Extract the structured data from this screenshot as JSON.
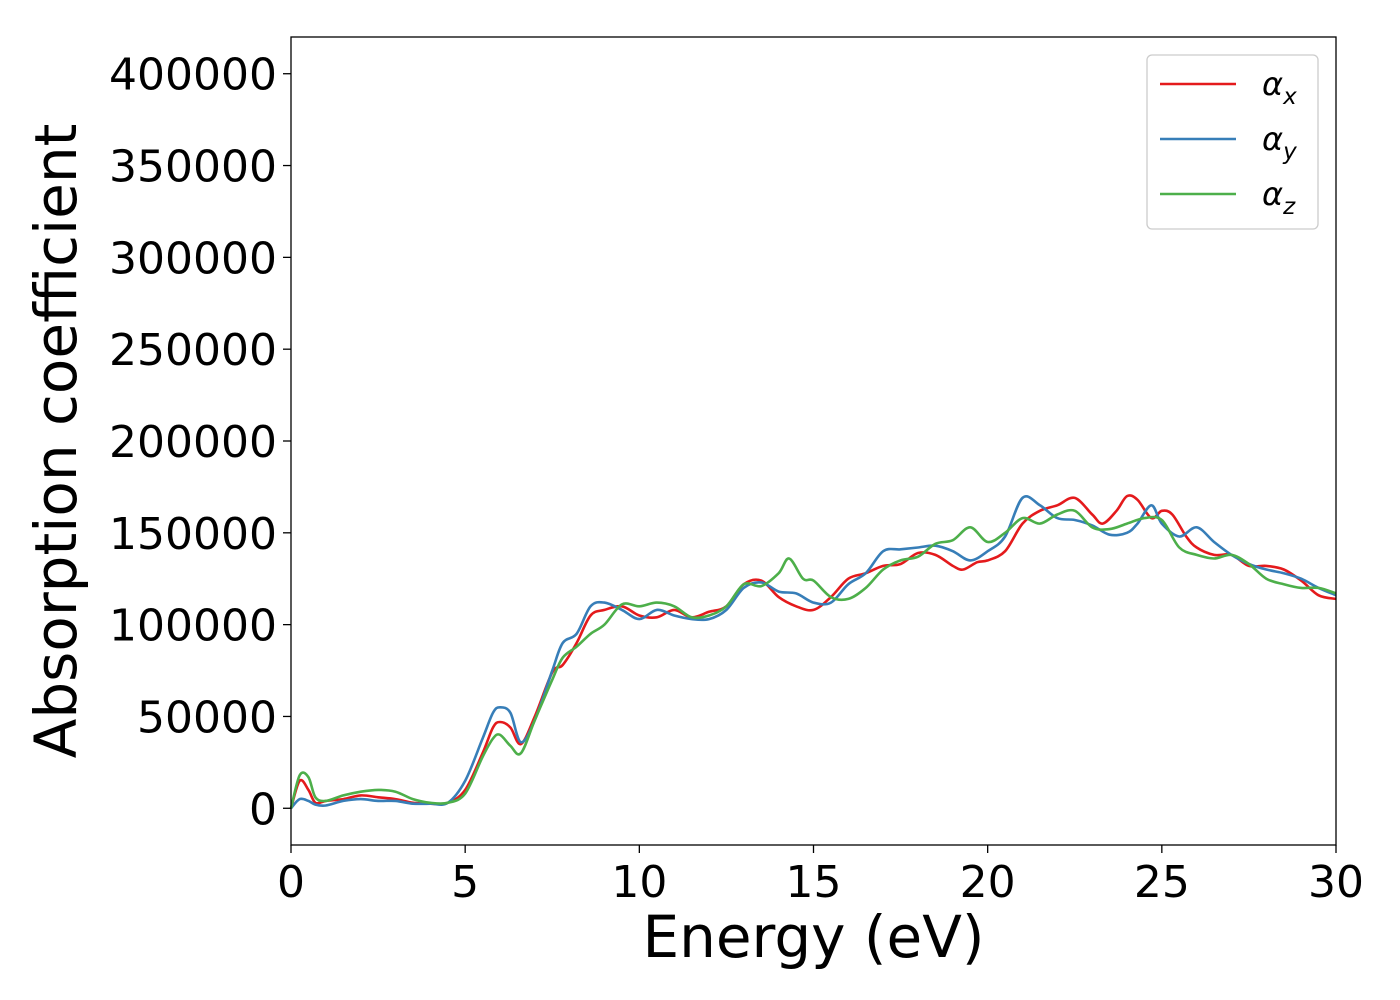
{
  "chart_data": {
    "type": "line",
    "title": "",
    "xlabel": "Energy (eV)",
    "ylabel": "Absorption coefficient",
    "xlim": [
      0,
      30
    ],
    "ylim": [
      -20000,
      420000
    ],
    "xticks": [
      0,
      5,
      10,
      15,
      20,
      25,
      30
    ],
    "xtick_labels": [
      "0",
      "5",
      "10",
      "15",
      "20",
      "25",
      "30"
    ],
    "yticks": [
      0,
      50000,
      100000,
      150000,
      200000,
      250000,
      300000,
      350000,
      400000
    ],
    "ytick_labels": [
      "0",
      "50000",
      "100000",
      "150000",
      "200000",
      "250000",
      "300000",
      "350000",
      "400000"
    ],
    "grid": false,
    "legend_position": "top-right",
    "series": [
      {
        "name": "α",
        "subscript": "x",
        "color": "#e41a1c",
        "x": [
          0,
          0.25,
          0.5,
          0.7,
          1.0,
          1.5,
          2.0,
          2.5,
          3.0,
          3.5,
          4.0,
          4.5,
          5.0,
          5.5,
          5.8,
          6.0,
          6.3,
          6.6,
          7.0,
          7.5,
          7.8,
          8.2,
          8.6,
          9.0,
          9.5,
          10.0,
          10.5,
          11.0,
          11.5,
          12.0,
          12.5,
          13.0,
          13.5,
          14.0,
          14.5,
          15.0,
          15.5,
          16.0,
          16.5,
          17.0,
          17.5,
          18.0,
          18.5,
          19.0,
          19.3,
          19.7,
          20.0,
          20.5,
          21.0,
          21.5,
          22.0,
          22.5,
          23.0,
          23.3,
          23.7,
          24.0,
          24.3,
          24.7,
          25.0,
          25.3,
          25.7,
          26.0,
          26.5,
          27.0,
          27.5,
          28.0,
          28.5,
          29.0,
          29.5,
          30.0
        ],
        "y": [
          0,
          15000,
          10000,
          3000,
          4000,
          5000,
          7000,
          6000,
          5000,
          3000,
          2500,
          3000,
          10000,
          30000,
          44000,
          47000,
          44000,
          35000,
          50000,
          74000,
          78000,
          90000,
          105000,
          108000,
          110000,
          105000,
          104000,
          108000,
          104000,
          107000,
          110000,
          122000,
          124000,
          115000,
          110000,
          108000,
          115000,
          125000,
          128000,
          132000,
          133000,
          139000,
          138000,
          132000,
          130000,
          134000,
          135000,
          140000,
          155000,
          162000,
          165000,
          169000,
          160000,
          155000,
          162000,
          170000,
          168000,
          158000,
          162000,
          160000,
          148000,
          142000,
          138000,
          138000,
          132000,
          132000,
          130000,
          124000,
          116000,
          114000
        ]
      },
      {
        "name": "α",
        "subscript": "y",
        "color": "#377eb8",
        "x": [
          0,
          0.25,
          0.5,
          0.7,
          1.0,
          1.5,
          2.0,
          2.5,
          3.0,
          3.5,
          4.0,
          4.5,
          5.0,
          5.5,
          5.8,
          6.0,
          6.3,
          6.6,
          7.0,
          7.5,
          7.8,
          8.2,
          8.6,
          9.0,
          9.5,
          10.0,
          10.5,
          11.0,
          11.5,
          12.0,
          12.5,
          13.0,
          13.5,
          14.0,
          14.5,
          15.0,
          15.5,
          16.0,
          16.5,
          17.0,
          17.5,
          18.0,
          18.5,
          19.0,
          19.5,
          20.0,
          20.5,
          21.0,
          21.5,
          22.0,
          22.5,
          23.0,
          23.5,
          24.0,
          24.3,
          24.7,
          25.0,
          25.5,
          26.0,
          26.5,
          27.0,
          27.5,
          28.0,
          28.5,
          29.0,
          29.5,
          30.0
        ],
        "y": [
          0,
          5000,
          4000,
          2000,
          1500,
          4000,
          5000,
          4000,
          4000,
          2500,
          2500,
          3000,
          15000,
          38000,
          52000,
          55000,
          52000,
          36000,
          48000,
          75000,
          90000,
          95000,
          110000,
          112000,
          108000,
          103000,
          108000,
          105000,
          103000,
          103000,
          108000,
          120000,
          123000,
          118000,
          117000,
          112000,
          112000,
          122000,
          128000,
          140000,
          141000,
          142000,
          143000,
          140000,
          135000,
          140000,
          148000,
          169000,
          165000,
          158000,
          157000,
          154000,
          149000,
          150000,
          155000,
          165000,
          155000,
          148000,
          153000,
          145000,
          138000,
          133000,
          130000,
          128000,
          125000,
          120000,
          116000
        ]
      },
      {
        "name": "α",
        "subscript": "z",
        "color": "#4daf4a",
        "x": [
          0,
          0.25,
          0.5,
          0.7,
          1.0,
          1.5,
          2.0,
          2.5,
          3.0,
          3.5,
          4.0,
          4.5,
          5.0,
          5.5,
          5.8,
          6.0,
          6.3,
          6.6,
          7.0,
          7.5,
          7.8,
          8.2,
          8.6,
          9.0,
          9.5,
          10.0,
          10.5,
          11.0,
          11.5,
          12.0,
          12.5,
          13.0,
          13.5,
          14.0,
          14.3,
          14.7,
          15.0,
          15.5,
          16.0,
          16.5,
          17.0,
          17.5,
          18.0,
          18.5,
          19.0,
          19.5,
          20.0,
          20.5,
          21.0,
          21.5,
          22.0,
          22.5,
          23.0,
          23.5,
          24.0,
          24.5,
          25.0,
          25.5,
          26.0,
          26.5,
          27.0,
          27.5,
          28.0,
          28.5,
          29.0,
          29.5,
          30.0
        ],
        "y": [
          0,
          18000,
          17000,
          6000,
          4000,
          7000,
          9000,
          10000,
          9000,
          5000,
          3000,
          3000,
          8000,
          28000,
          38000,
          40000,
          34000,
          30000,
          48000,
          70000,
          82000,
          88000,
          95000,
          100000,
          111000,
          110000,
          112000,
          110000,
          104000,
          105000,
          110000,
          122000,
          121000,
          128000,
          136000,
          125000,
          124000,
          115000,
          114000,
          120000,
          130000,
          135000,
          137000,
          144000,
          146000,
          153000,
          145000,
          150000,
          158000,
          155000,
          160000,
          162000,
          153000,
          152000,
          155000,
          158000,
          157000,
          142000,
          138000,
          136000,
          138000,
          133000,
          125000,
          122000,
          120000,
          120000,
          117000
        ]
      }
    ]
  }
}
